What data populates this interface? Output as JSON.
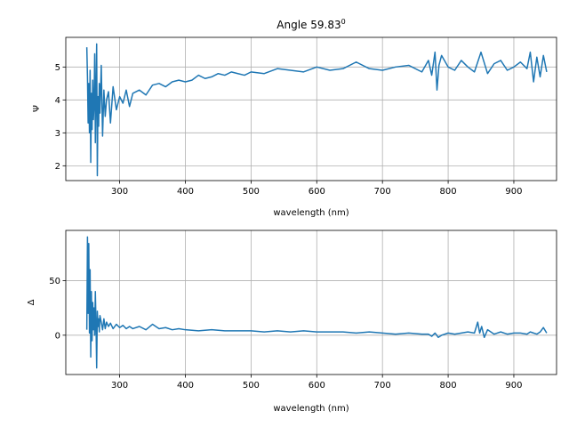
{
  "chart_data": [
    {
      "type": "line",
      "title": "Angle 59.83",
      "title_superscript": "0",
      "xlabel": "wavelength (nm)",
      "ylabel": "Ψ",
      "xlim": [
        218,
        965
      ],
      "ylim": [
        1.55,
        5.9
      ],
      "xticks": [
        300,
        400,
        500,
        600,
        700,
        800,
        900
      ],
      "yticks": [
        2,
        3,
        4,
        5
      ],
      "grid": true,
      "line_color": "#1f77b4",
      "series": [
        {
          "x": [
            250,
            251,
            252,
            253,
            254,
            255,
            256,
            257,
            258,
            259,
            260,
            261,
            262,
            263,
            264,
            265,
            266,
            267,
            268,
            269,
            270,
            272,
            274,
            276,
            278,
            280,
            283,
            286,
            290,
            295,
            300,
            305,
            310,
            315,
            320,
            330,
            340,
            350,
            360,
            370,
            380,
            390,
            400,
            410,
            420,
            430,
            440,
            450,
            460,
            470,
            480,
            490,
            500,
            520,
            540,
            560,
            580,
            600,
            620,
            640,
            660,
            680,
            700,
            720,
            740,
            760,
            770,
            775,
            780,
            783,
            786,
            790,
            800,
            810,
            820,
            830,
            840,
            850,
            860,
            870,
            880,
            890,
            900,
            910,
            920,
            925,
            930,
            935,
            940,
            945,
            950
          ],
          "y": [
            5.6,
            4.7,
            3.3,
            4.5,
            3.0,
            4.9,
            2.1,
            4.2,
            3.1,
            4.6,
            3.4,
            3.9,
            5.4,
            2.7,
            4.3,
            5.7,
            1.7,
            4.1,
            3.2,
            4.5,
            3.6,
            5.05,
            2.9,
            4.3,
            3.5,
            4.0,
            4.25,
            3.3,
            4.4,
            3.7,
            4.1,
            3.9,
            4.3,
            3.8,
            4.2,
            4.3,
            4.15,
            4.45,
            4.5,
            4.4,
            4.55,
            4.6,
            4.55,
            4.6,
            4.75,
            4.65,
            4.7,
            4.8,
            4.75,
            4.85,
            4.8,
            4.75,
            4.85,
            4.8,
            4.95,
            4.9,
            4.85,
            5.0,
            4.9,
            4.95,
            5.15,
            4.95,
            4.9,
            5.0,
            5.05,
            4.85,
            5.2,
            4.75,
            5.45,
            4.3,
            5.05,
            5.35,
            5.0,
            4.9,
            5.2,
            5.0,
            4.85,
            5.45,
            4.8,
            5.1,
            5.2,
            4.9,
            5.0,
            5.15,
            4.95,
            5.45,
            4.55,
            5.3,
            4.7,
            5.35,
            4.85
          ]
        }
      ]
    },
    {
      "type": "line",
      "title": "",
      "xlabel": "wavelength (nm)",
      "ylabel": "Δ",
      "xlim": [
        218,
        965
      ],
      "ylim": [
        -36,
        96
      ],
      "xticks": [
        300,
        400,
        500,
        600,
        700,
        800,
        900
      ],
      "yticks": [
        0,
        50
      ],
      "grid": true,
      "line_color": "#1f77b4",
      "series": [
        {
          "x": [
            250,
            251,
            252,
            253,
            254,
            255,
            256,
            257,
            258,
            259,
            260,
            261,
            262,
            263,
            264,
            265,
            266,
            267,
            268,
            269,
            270,
            272,
            274,
            276,
            278,
            280,
            283,
            286,
            290,
            295,
            300,
            305,
            310,
            315,
            320,
            330,
            340,
            350,
            360,
            370,
            380,
            390,
            400,
            420,
            440,
            460,
            480,
            500,
            520,
            540,
            560,
            580,
            600,
            620,
            640,
            660,
            680,
            700,
            720,
            740,
            760,
            770,
            775,
            780,
            785,
            790,
            800,
            810,
            820,
            830,
            840,
            845,
            848,
            851,
            855,
            860,
            870,
            880,
            890,
            900,
            910,
            920,
            925,
            930,
            935,
            940,
            945,
            950
          ],
          "y": [
            5,
            90,
            20,
            84,
            2,
            60,
            -20,
            40,
            -5,
            30,
            5,
            25,
            0,
            40,
            10,
            -30,
            22,
            8,
            15,
            3,
            18,
            12,
            5,
            15,
            6,
            12,
            8,
            11,
            6,
            10,
            7,
            9,
            6,
            8,
            6,
            8,
            5,
            10,
            6,
            7,
            5,
            6,
            5,
            4,
            5,
            4,
            4,
            4,
            3,
            4,
            3,
            4,
            3,
            3,
            3,
            2,
            3,
            2,
            1,
            2,
            1,
            1,
            -1,
            2,
            -2,
            0,
            2,
            1,
            2,
            3,
            2,
            12,
            2,
            8,
            -2,
            5,
            1,
            3,
            1,
            2,
            2,
            1,
            3,
            2,
            1,
            3,
            7,
            2
          ]
        }
      ]
    }
  ]
}
